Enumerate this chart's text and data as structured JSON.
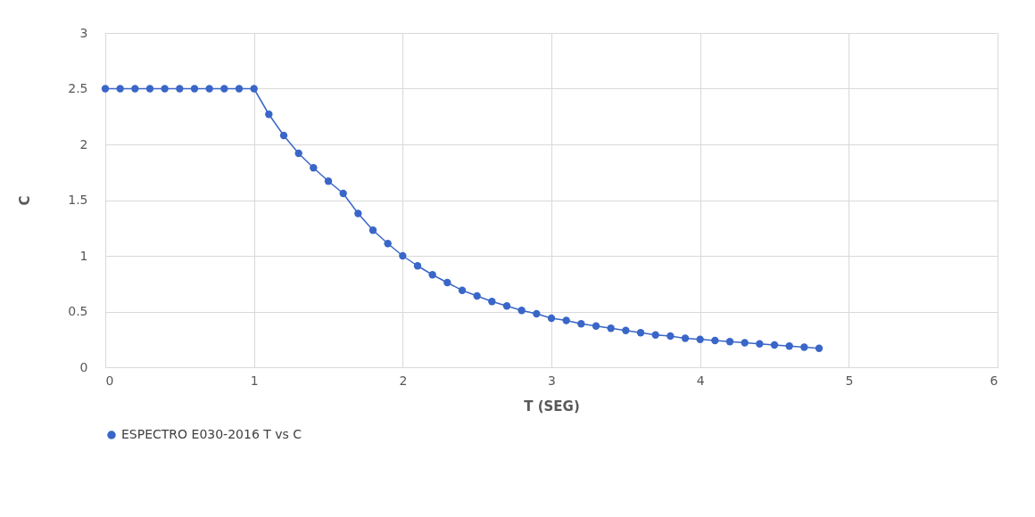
{
  "chart_data": {
    "type": "line",
    "xlabel": "T (SEG)",
    "ylabel": "C",
    "x": [
      0,
      0.1,
      0.2,
      0.3,
      0.4,
      0.5,
      0.6,
      0.7,
      0.8,
      0.9,
      1.0,
      1.1,
      1.2,
      1.3,
      1.4,
      1.5,
      1.6,
      1.7,
      1.8,
      1.9,
      2.0,
      2.1,
      2.2,
      2.3,
      2.4,
      2.5,
      2.6,
      2.7,
      2.8,
      2.9,
      3.0,
      3.1,
      3.2,
      3.3,
      3.4,
      3.5,
      3.6,
      3.7,
      3.8,
      3.9,
      4.0,
      4.1,
      4.2,
      4.3,
      4.4,
      4.5,
      4.6,
      4.7,
      4.8
    ],
    "series": [
      {
        "name": "ESPECTRO E030-2016 T vs C",
        "color": "#3a66c8",
        "values": [
          2.5,
          2.5,
          2.5,
          2.5,
          2.5,
          2.5,
          2.5,
          2.5,
          2.5,
          2.5,
          2.5,
          2.27,
          2.08,
          1.92,
          1.79,
          1.67,
          1.56,
          1.38,
          1.23,
          1.11,
          1.0,
          0.91,
          0.83,
          0.76,
          0.69,
          0.64,
          0.59,
          0.55,
          0.51,
          0.48,
          0.44,
          0.42,
          0.39,
          0.37,
          0.35,
          0.33,
          0.31,
          0.29,
          0.28,
          0.26,
          0.25,
          0.24,
          0.23,
          0.22,
          0.21,
          0.2,
          0.19,
          0.18,
          0.17
        ]
      }
    ],
    "xlim": [
      0,
      6
    ],
    "xticks": [
      0,
      1,
      2,
      3,
      4,
      5,
      6
    ],
    "ylim": [
      0,
      3
    ],
    "yticks": [
      0,
      0.5,
      1,
      1.5,
      2,
      2.5,
      3
    ],
    "grid": true,
    "legend": "bottom",
    "marker": "circle",
    "line_style": "solid"
  }
}
